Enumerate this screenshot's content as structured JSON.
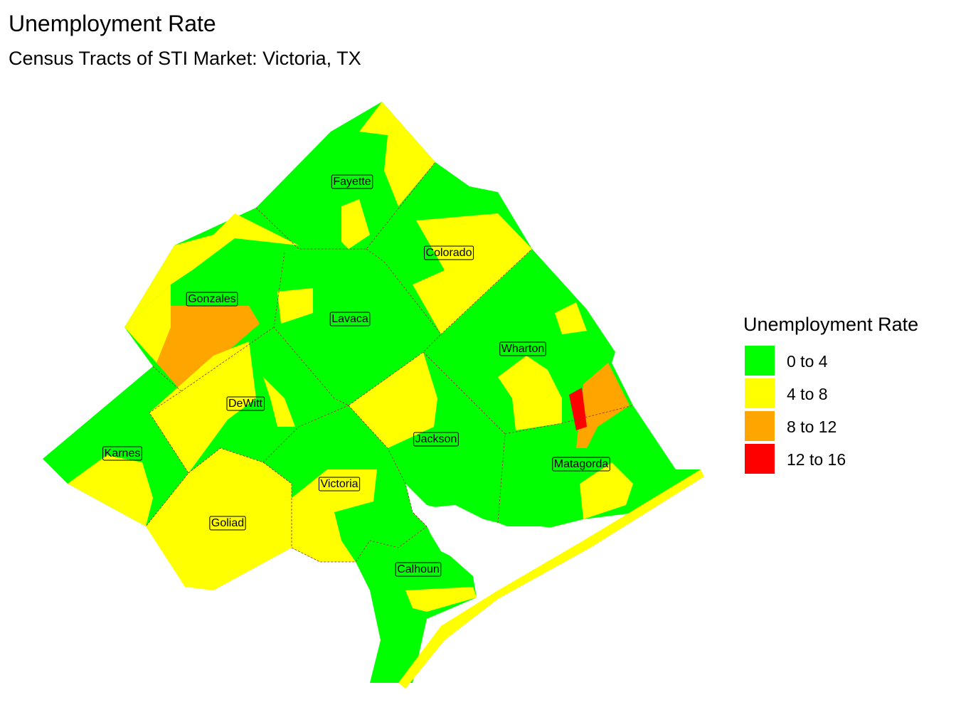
{
  "title": "Unemployment Rate",
  "subtitle": "Census Tracts of STI Market: Victoria, TX",
  "legend": {
    "title": "Unemployment Rate",
    "items": [
      {
        "label": "0 to 4",
        "color": "#00ff00"
      },
      {
        "label": "4 to 8",
        "color": "#ffff00"
      },
      {
        "label": "8 to 12",
        "color": "#ffa500"
      },
      {
        "label": "12 to 16",
        "color": "#ff0000"
      }
    ]
  },
  "counties": [
    "Fayette",
    "Colorado",
    "Gonzales",
    "Lavaca",
    "Wharton",
    "DeWitt",
    "Jackson",
    "Karnes",
    "Matagorda",
    "Victoria",
    "Goliad",
    "Calhoun"
  ]
}
